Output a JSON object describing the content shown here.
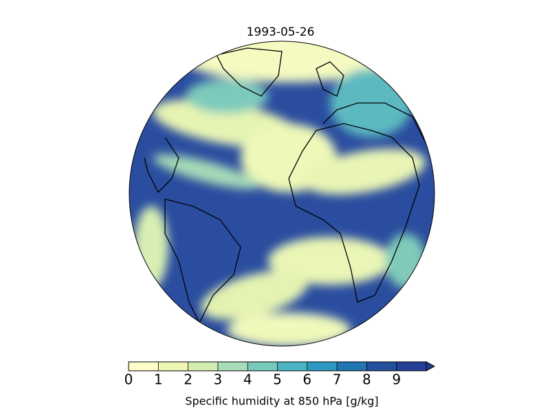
{
  "chart_data": {
    "type": "colorbar-map",
    "title": "1993-05-26",
    "colorbar": {
      "label": "Specific humidity at 850 hPa [g/kg]",
      "lim": [
        0,
        10
      ],
      "ticks": [
        0,
        1,
        2,
        3,
        4,
        5,
        6,
        7,
        8,
        9
      ],
      "extend": "max",
      "colors": [
        "#fcfdc8",
        "#eef8b3",
        "#d3eeb3",
        "#a9ddb7",
        "#76c9bb",
        "#4ab4c2",
        "#2d98c0",
        "#2075b3",
        "#24519e",
        "#253f96"
      ],
      "over_color": "#243d94"
    }
  }
}
